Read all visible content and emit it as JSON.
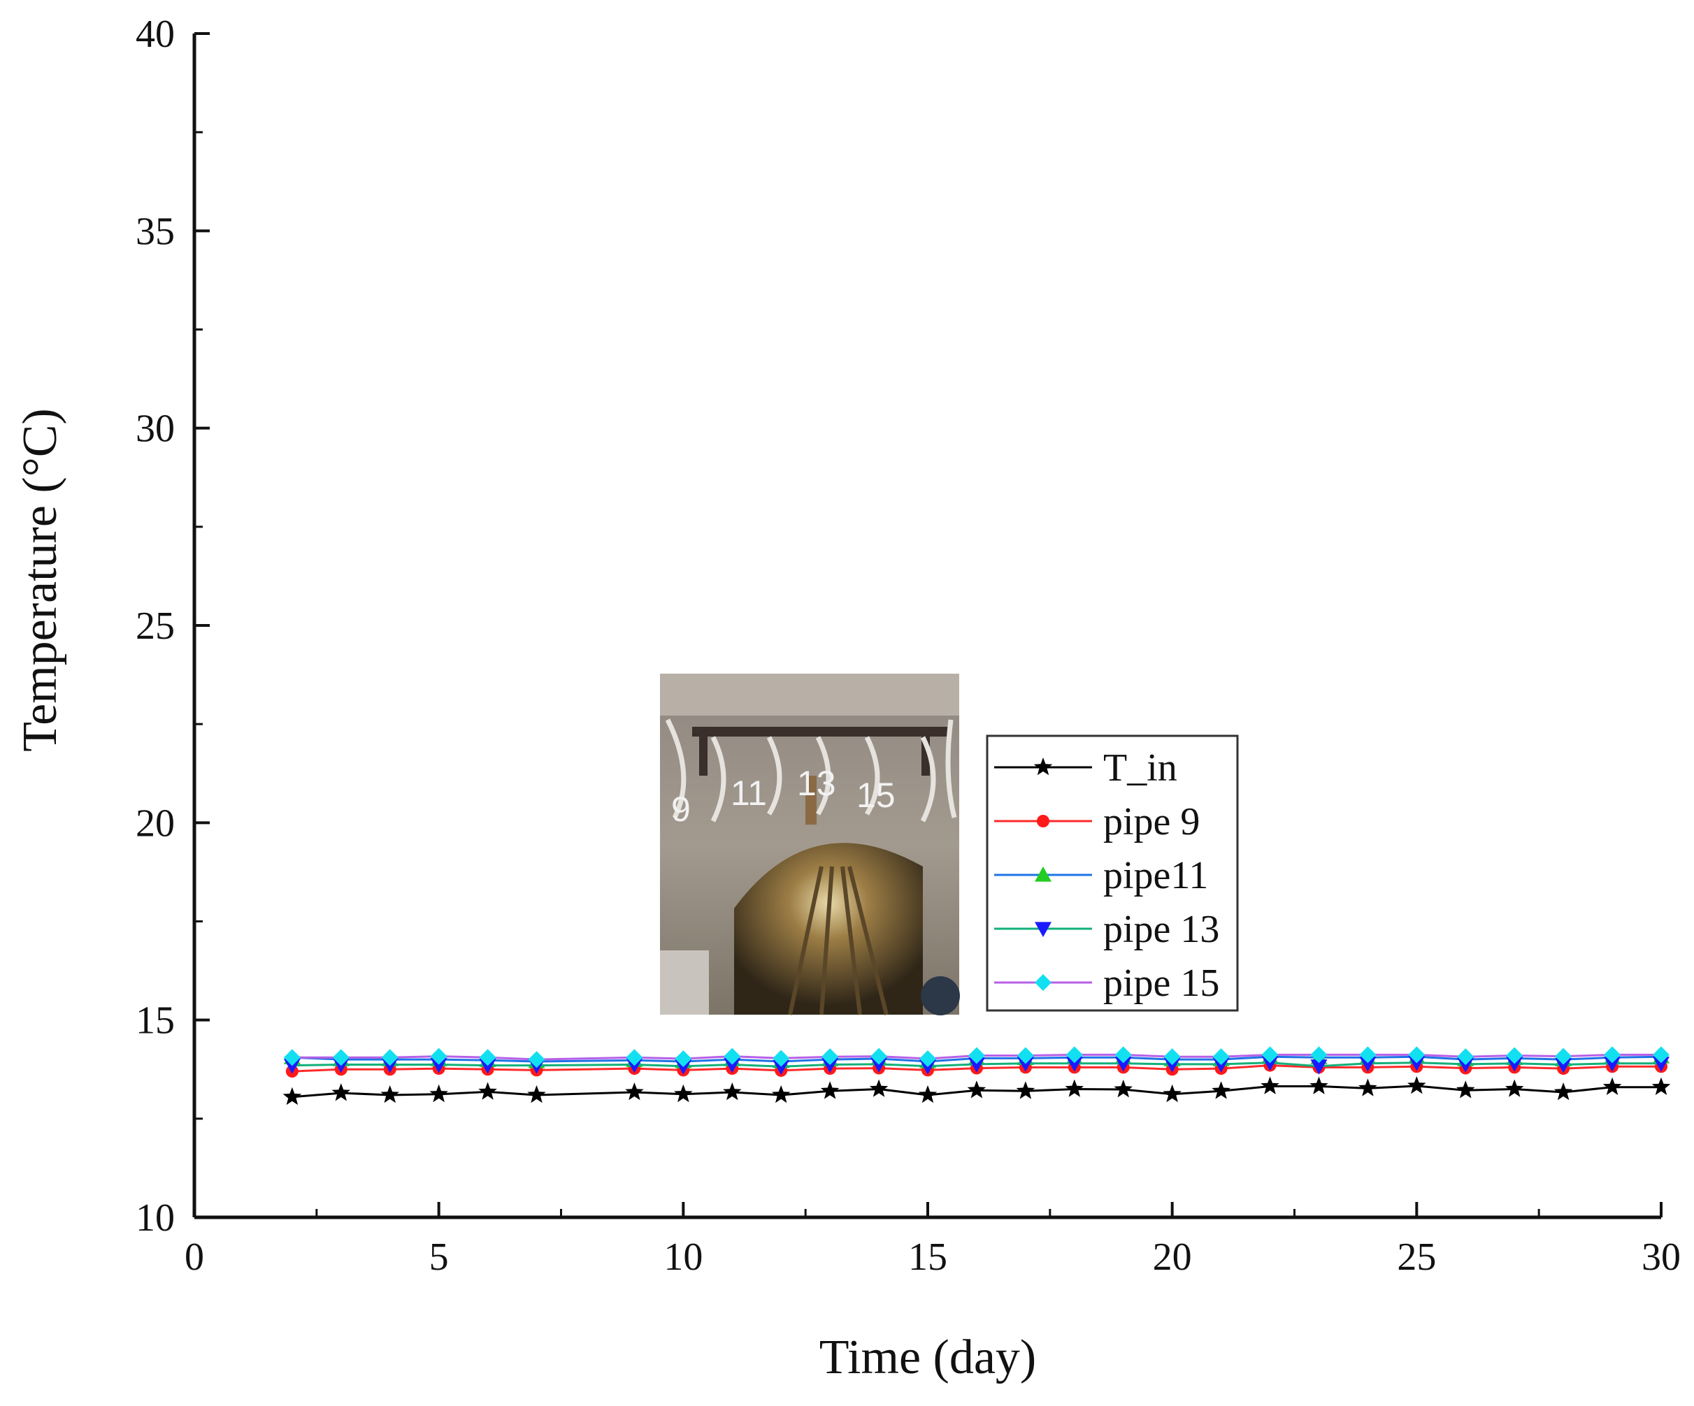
{
  "chart_data": {
    "type": "line",
    "title": "",
    "xlabel": "Time (day)",
    "ylabel": "Temperature (°C)",
    "xlim": [
      0,
      30
    ],
    "ylim": [
      10,
      40
    ],
    "xticks": [
      0,
      5,
      10,
      15,
      20,
      25,
      30
    ],
    "yticks": [
      10,
      15,
      20,
      25,
      30,
      35,
      40
    ],
    "grid": false,
    "legend_position": "center-right",
    "x": [
      2,
      3,
      4,
      5,
      6,
      7,
      9,
      10,
      11,
      12,
      13,
      14,
      15,
      16,
      17,
      18,
      19,
      20,
      21,
      22,
      23,
      24,
      25,
      26,
      27,
      28,
      29,
      30
    ],
    "series": [
      {
        "name": "T_in",
        "color": "#000000",
        "marker": "star",
        "values": [
          13.05,
          13.15,
          13.1,
          13.12,
          13.18,
          13.1,
          13.17,
          13.12,
          13.17,
          13.1,
          13.2,
          13.25,
          13.1,
          13.22,
          13.2,
          13.25,
          13.24,
          13.12,
          13.2,
          13.32,
          13.32,
          13.27,
          13.33,
          13.22,
          13.25,
          13.17,
          13.3,
          13.3
        ]
      },
      {
        "name": "pipe 9",
        "color": "#ff2a2a",
        "marker": "circle",
        "values": [
          13.7,
          13.75,
          13.75,
          13.77,
          13.75,
          13.73,
          13.77,
          13.73,
          13.77,
          13.72,
          13.77,
          13.78,
          13.73,
          13.78,
          13.8,
          13.8,
          13.8,
          13.75,
          13.77,
          13.85,
          13.8,
          13.8,
          13.82,
          13.78,
          13.8,
          13.77,
          13.82,
          13.82
        ]
      },
      {
        "name": "pipe11",
        "color": "#1e73e6",
        "marker": "triangle-up",
        "values": [
          14.05,
          14.0,
          14.0,
          14.0,
          13.98,
          13.95,
          13.98,
          13.95,
          14.0,
          13.95,
          14.0,
          14.02,
          13.95,
          14.03,
          14.03,
          14.05,
          14.05,
          14.0,
          14.0,
          14.07,
          14.05,
          14.05,
          14.07,
          14.0,
          14.03,
          14.0,
          14.05,
          14.07
        ]
      },
      {
        "name": "pipe 13",
        "color": "#12b07a",
        "marker": "triangle-down",
        "values": [
          13.85,
          13.87,
          13.87,
          13.87,
          13.85,
          13.85,
          13.87,
          13.83,
          13.87,
          13.82,
          13.87,
          13.88,
          13.83,
          13.88,
          13.9,
          13.9,
          13.9,
          13.88,
          13.88,
          13.92,
          13.83,
          13.9,
          13.92,
          13.88,
          13.9,
          13.87,
          13.9,
          13.9
        ]
      },
      {
        "name": "pipe 15",
        "color": "#b760e8",
        "marker": "diamond",
        "values": [
          14.05,
          14.05,
          14.05,
          14.08,
          14.05,
          14.0,
          14.05,
          14.02,
          14.08,
          14.03,
          14.07,
          14.08,
          14.02,
          14.1,
          14.1,
          14.12,
          14.12,
          14.07,
          14.07,
          14.12,
          14.12,
          14.12,
          14.12,
          14.07,
          14.1,
          14.08,
          14.12,
          14.12
        ]
      }
    ],
    "inset_photo": {
      "labels": [
        "9",
        "11",
        "13",
        "15"
      ]
    }
  },
  "colors": {
    "marker_pipe11": "#22cc22",
    "marker_pipe13": "#1a1aff",
    "marker_pipe15": "#12e0f0"
  }
}
